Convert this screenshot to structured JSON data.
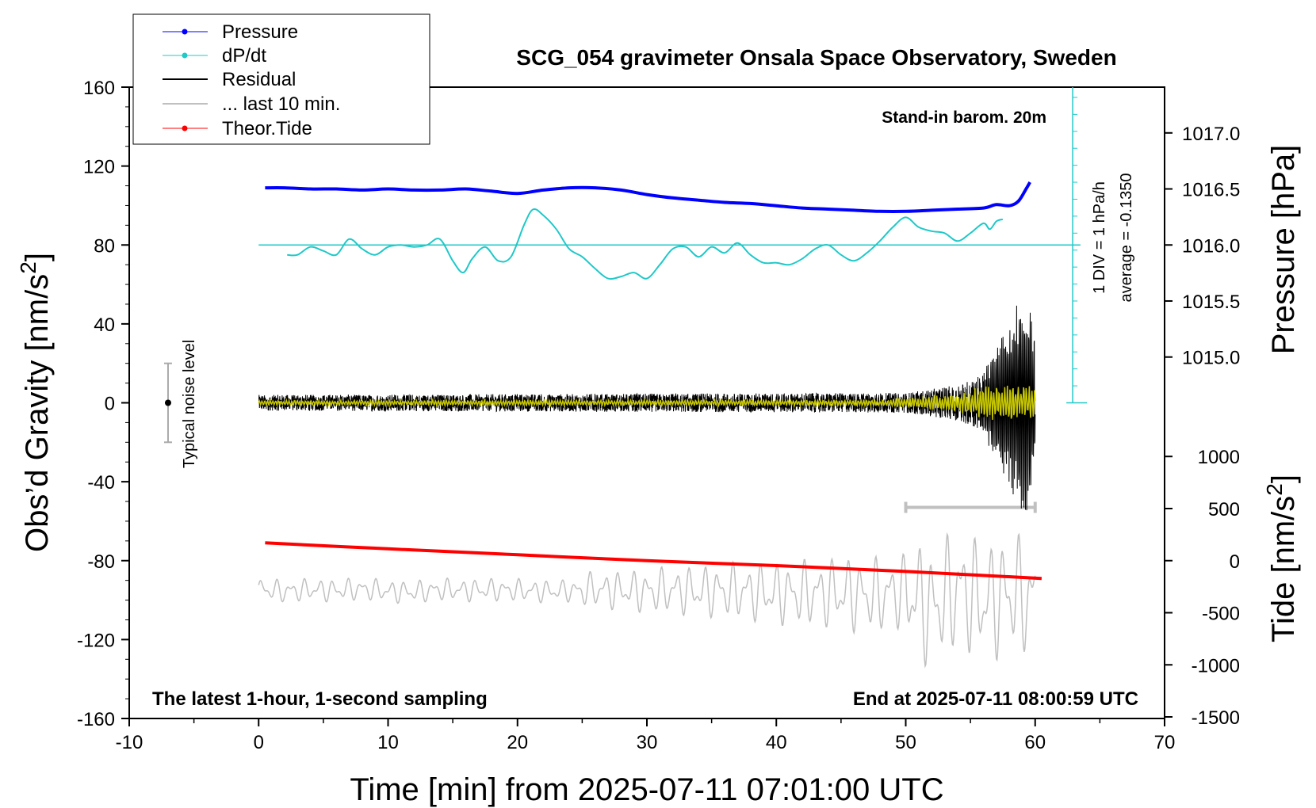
{
  "chart_data": {
    "type": "line",
    "title": "SCG_054 gravimeter Onsala Space Observatory, Sweden",
    "xlabel": "Time [min] from 2025-07-11 07:01:00 UTC",
    "ylabel_left": "Obs'd Gravity [nm/s2]",
    "ylabel_right_top": "Pressure [hPa]",
    "ylabel_right_bottom": "Tide [nm/s2]",
    "xlim": [
      -10,
      70
    ],
    "ylim": [
      -160,
      160
    ],
    "x_ticks": [
      "-10",
      "0",
      "10",
      "20",
      "30",
      "40",
      "50",
      "60",
      "70"
    ],
    "y_ticks": [
      "160",
      "120",
      "80",
      "40",
      "0",
      "-40",
      "-80",
      "-120",
      "-160"
    ],
    "pressure_ticks": [
      "1017.0",
      "1016.5",
      "1016.0",
      "1015.5",
      "1015.0"
    ],
    "tide_ticks": [
      "1000",
      "500",
      "0",
      "-500",
      "-1000",
      "-1500"
    ],
    "annotations": {
      "barometer": "Stand-in barom. 20m",
      "scale_div": "1 DIV = 1 hPa/h",
      "average": "average = -0.1350",
      "noise": "Typical noise level",
      "latest": "The latest 1-hour, 1-second sampling",
      "end_time": "End at 2025-07-11 08:00:59 UTC"
    },
    "legend": {
      "placement": "top-left",
      "entries": [
        "Pressure",
        "dP/dt",
        "Residual",
        "... last 10 min.",
        "Theor.Tide"
      ]
    },
    "series": [
      {
        "name": "Pressure",
        "unit": "hPa",
        "color": "#0000ff",
        "points": [
          [
            0.5,
            1016.51
          ],
          [
            2,
            1016.51
          ],
          [
            4,
            1016.5
          ],
          [
            6,
            1016.5
          ],
          [
            8,
            1016.49
          ],
          [
            10,
            1016.5
          ],
          [
            12,
            1016.49
          ],
          [
            14,
            1016.49
          ],
          [
            16,
            1016.5
          ],
          [
            18,
            1016.48
          ],
          [
            20,
            1016.46
          ],
          [
            22,
            1016.49
          ],
          [
            24,
            1016.51
          ],
          [
            26,
            1016.51
          ],
          [
            28,
            1016.49
          ],
          [
            30,
            1016.45
          ],
          [
            32,
            1016.42
          ],
          [
            34,
            1016.4
          ],
          [
            36,
            1016.38
          ],
          [
            38,
            1016.37
          ],
          [
            40,
            1016.35
          ],
          [
            42,
            1016.33
          ],
          [
            44,
            1016.32
          ],
          [
            46,
            1016.31
          ],
          [
            48,
            1016.3
          ],
          [
            50,
            1016.3
          ],
          [
            52,
            1016.31
          ],
          [
            54,
            1016.32
          ],
          [
            56,
            1016.33
          ],
          [
            57,
            1016.36
          ],
          [
            58,
            1016.35
          ],
          [
            58.7,
            1016.39
          ],
          [
            59.3,
            1016.5
          ],
          [
            59.6,
            1016.56
          ]
        ]
      },
      {
        "name": "dP/dt",
        "unit": "nm/s2 panel (zero at 80, 1 DIV = 1 hPa/h)",
        "color": "#20c8c8",
        "baseline": 80,
        "points": [
          [
            2.2,
            75
          ],
          [
            3,
            75
          ],
          [
            4,
            79
          ],
          [
            5,
            77
          ],
          [
            6,
            75
          ],
          [
            7,
            83
          ],
          [
            8,
            78
          ],
          [
            9,
            75
          ],
          [
            10,
            79
          ],
          [
            11,
            80
          ],
          [
            12,
            79
          ],
          [
            13,
            80
          ],
          [
            14,
            83
          ],
          [
            15,
            72
          ],
          [
            15.8,
            66
          ],
          [
            16.5,
            73
          ],
          [
            17.5,
            79
          ],
          [
            18.5,
            72
          ],
          [
            19.5,
            74
          ],
          [
            20.5,
            90
          ],
          [
            21.2,
            98
          ],
          [
            22,
            95
          ],
          [
            23,
            88
          ],
          [
            24,
            78
          ],
          [
            25,
            74
          ],
          [
            26,
            68
          ],
          [
            27,
            63
          ],
          [
            28,
            64
          ],
          [
            29,
            66
          ],
          [
            30,
            63
          ],
          [
            31,
            70
          ],
          [
            32,
            78
          ],
          [
            33,
            79
          ],
          [
            34,
            74
          ],
          [
            35,
            79
          ],
          [
            36,
            76
          ],
          [
            37,
            81
          ],
          [
            38,
            75
          ],
          [
            39,
            71
          ],
          [
            40,
            71
          ],
          [
            41,
            70
          ],
          [
            42,
            73
          ],
          [
            43,
            78
          ],
          [
            44,
            80
          ],
          [
            45,
            75
          ],
          [
            46,
            72
          ],
          [
            47,
            76
          ],
          [
            48,
            82
          ],
          [
            49,
            89
          ],
          [
            50,
            94
          ],
          [
            51,
            89
          ],
          [
            52,
            87
          ],
          [
            53,
            86
          ],
          [
            54,
            82
          ],
          [
            55,
            86
          ],
          [
            56,
            91
          ],
          [
            56.5,
            88
          ],
          [
            57,
            92
          ],
          [
            57.5,
            93
          ]
        ]
      },
      {
        "name": "Residual",
        "unit": "nm/s2",
        "color": "#000000",
        "noise_amplitude": [
          [
            0,
            4
          ],
          [
            50,
            5
          ],
          [
            54,
            9
          ],
          [
            56,
            15
          ],
          [
            58,
            40
          ],
          [
            59.3,
            55
          ],
          [
            60,
            30
          ]
        ]
      },
      {
        "name": "... last 10 min.",
        "unit": "tide panel overlay (min 50 to 60)",
        "color": "#c0c0c0",
        "points": [
          [
            0,
            -96
          ],
          [
            2,
            -104
          ],
          [
            4,
            -98
          ],
          [
            6,
            -100
          ],
          [
            8,
            -96
          ],
          [
            10,
            -103
          ],
          [
            12,
            -106
          ],
          [
            14,
            -98
          ],
          [
            16,
            -100
          ],
          [
            18,
            -98
          ],
          [
            20,
            -100
          ],
          [
            22,
            -103
          ],
          [
            24,
            -102
          ],
          [
            26,
            -98
          ],
          [
            28,
            -100
          ],
          [
            30,
            -104
          ],
          [
            32,
            -100
          ],
          [
            34,
            -103
          ],
          [
            36,
            -102
          ],
          [
            38,
            -105
          ],
          [
            40,
            -110
          ],
          [
            42,
            -112
          ],
          [
            44,
            -108
          ],
          [
            46,
            -112
          ],
          [
            48,
            -120
          ],
          [
            50,
            -100
          ],
          [
            52,
            -160
          ],
          [
            54,
            -96
          ],
          [
            56,
            -140
          ],
          [
            58,
            -110
          ],
          [
            60,
            -135
          ]
        ]
      },
      {
        "name": "Theor.Tide",
        "unit": "nm/s2 tide axis",
        "color": "#ff0000",
        "points": [
          [
            0.5,
            -71
          ],
          [
            10,
            -74
          ],
          [
            20,
            -77
          ],
          [
            30,
            -80
          ],
          [
            40,
            -82.5
          ],
          [
            50,
            -85.5
          ],
          [
            60.5,
            -89
          ]
        ]
      }
    ],
    "noise_level": {
      "x": -7,
      "center": 0,
      "low": -20,
      "high": 20
    },
    "last10_bar": {
      "x_start": 50,
      "x_end": 60,
      "y": -53
    }
  }
}
